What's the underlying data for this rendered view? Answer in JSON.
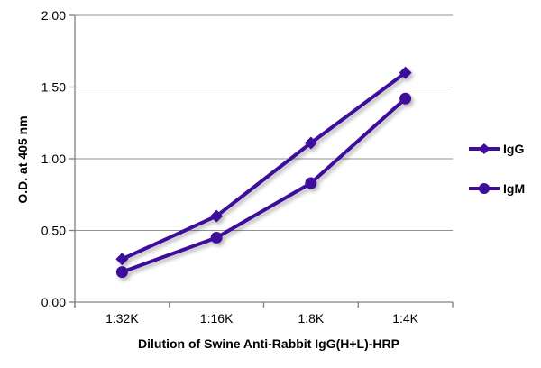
{
  "chart_data": {
    "type": "line",
    "title": "",
    "xlabel": "Dilution of Swine Anti-Rabbit IgG(H+L)-HRP",
    "ylabel": "O.D. at 405 nm",
    "categories": [
      "1:32K",
      "1:16K",
      "1:8K",
      "1:4K"
    ],
    "series": [
      {
        "name": "IgG",
        "marker": "diamond",
        "values": [
          0.3,
          0.6,
          1.11,
          1.6
        ]
      },
      {
        "name": "IgM",
        "marker": "circle",
        "values": [
          0.21,
          0.45,
          0.83,
          1.42
        ]
      }
    ],
    "ylim": [
      0,
      2.0
    ],
    "ytick_labels": [
      "0.00",
      "0.50",
      "1.00",
      "1.50",
      "2.00"
    ],
    "grid": true,
    "legend_position": "right",
    "colors": {
      "series": "#3E0D9B",
      "grid": "#909090",
      "axis": "#808080",
      "text": "#000000"
    }
  }
}
